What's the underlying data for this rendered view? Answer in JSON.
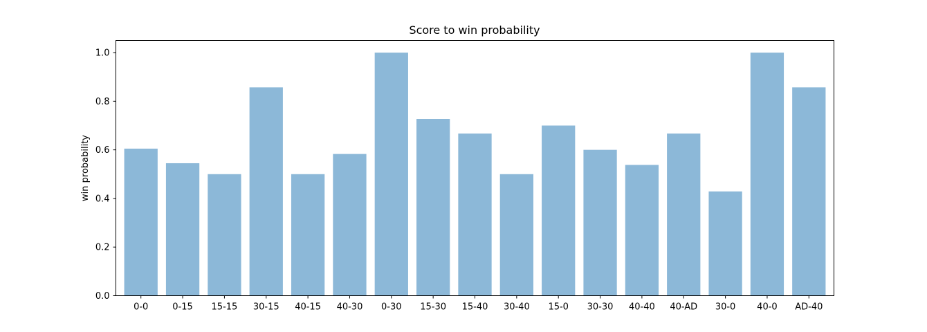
{
  "chart_data": {
    "type": "bar",
    "title": "Score to win probability",
    "xlabel": "",
    "ylabel": "win probability",
    "categories": [
      "0-0",
      "0-15",
      "15-15",
      "30-15",
      "40-15",
      "40-30",
      "0-30",
      "15-30",
      "15-40",
      "30-40",
      "15-0",
      "30-30",
      "40-40",
      "40-AD",
      "30-0",
      "40-0",
      "AD-40"
    ],
    "values": [
      0.605,
      0.545,
      0.5,
      0.857,
      0.5,
      0.583,
      1.0,
      0.727,
      0.667,
      0.5,
      0.7,
      0.6,
      0.538,
      0.667,
      0.429,
      1.0,
      0.857
    ],
    "ylim": [
      0,
      1.05
    ],
    "yticks": [
      0.0,
      0.2,
      0.4,
      0.6,
      0.8,
      1.0
    ],
    "ytick_labels": [
      "0.0",
      "0.2",
      "0.4",
      "0.6",
      "0.8",
      "1.0"
    ],
    "bar_color": "#8cb8d8",
    "grid": false,
    "legend": "none"
  }
}
